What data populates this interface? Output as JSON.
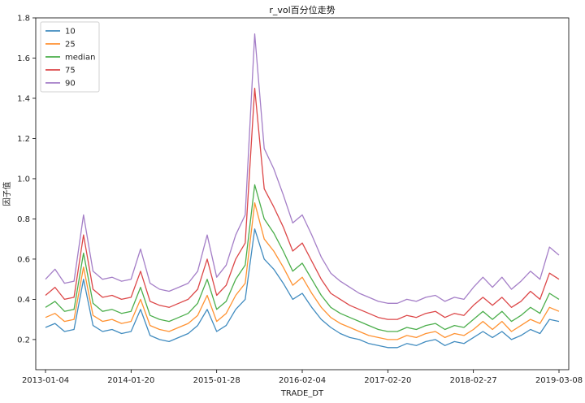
{
  "chart_data": {
    "type": "line",
    "title": "r_vol百分位走势",
    "xlabel": "TRADE_DT",
    "ylabel": "因子值",
    "ylim": [
      0.05,
      1.8
    ],
    "yticks": [
      0.2,
      0.4,
      0.6,
      0.8,
      1.0,
      1.2,
      1.4,
      1.6,
      1.8
    ],
    "ytick_labels": [
      "0.2",
      "0.4",
      "0.6",
      "0.8",
      "1.0",
      "1.2",
      "1.4",
      "1.6",
      "1.8"
    ],
    "xtick_labels": [
      "2013-01-04",
      "2014-01-20",
      "2015-01-28",
      "2016-02-04",
      "2017-02-20",
      "2018-02-27",
      "2019-03-08"
    ],
    "legend_position": "top-left",
    "grid": false,
    "x": [
      "2013-01-04",
      "2013-02-15",
      "2013-03-29",
      "2013-05-10",
      "2013-06-21",
      "2013-08-02",
      "2013-09-13",
      "2013-10-25",
      "2013-12-06",
      "2014-01-20",
      "2014-03-03",
      "2014-04-14",
      "2014-05-26",
      "2014-07-07",
      "2014-08-18",
      "2014-09-29",
      "2014-11-10",
      "2014-12-22",
      "2015-01-28",
      "2015-03-11",
      "2015-04-22",
      "2015-06-03",
      "2015-07-15",
      "2015-08-26",
      "2015-10-07",
      "2015-11-18",
      "2015-12-30",
      "2016-02-04",
      "2016-03-17",
      "2016-04-28",
      "2016-06-09",
      "2016-07-21",
      "2016-09-01",
      "2016-10-13",
      "2016-11-24",
      "2017-01-05",
      "2017-02-20",
      "2017-04-03",
      "2017-05-15",
      "2017-06-26",
      "2017-08-07",
      "2017-09-18",
      "2017-10-30",
      "2017-12-11",
      "2018-01-22",
      "2018-02-27",
      "2018-04-10",
      "2018-05-22",
      "2018-07-03",
      "2018-08-14",
      "2018-09-25",
      "2018-11-06",
      "2018-12-18",
      "2019-01-29",
      "2019-03-08"
    ],
    "series": [
      {
        "name": "10",
        "color": "#1f77b4",
        "values": [
          0.26,
          0.28,
          0.24,
          0.25,
          0.5,
          0.27,
          0.24,
          0.25,
          0.23,
          0.24,
          0.35,
          0.22,
          0.2,
          0.19,
          0.21,
          0.23,
          0.27,
          0.35,
          0.24,
          0.27,
          0.35,
          0.4,
          0.75,
          0.6,
          0.55,
          0.48,
          0.4,
          0.43,
          0.36,
          0.3,
          0.26,
          0.23,
          0.21,
          0.2,
          0.18,
          0.17,
          0.16,
          0.16,
          0.18,
          0.17,
          0.19,
          0.2,
          0.17,
          0.19,
          0.18,
          0.21,
          0.24,
          0.21,
          0.24,
          0.2,
          0.22,
          0.25,
          0.23,
          0.3,
          0.29
        ]
      },
      {
        "name": "25",
        "color": "#ff7f0e",
        "values": [
          0.31,
          0.33,
          0.29,
          0.3,
          0.56,
          0.32,
          0.29,
          0.3,
          0.28,
          0.29,
          0.4,
          0.27,
          0.25,
          0.24,
          0.26,
          0.28,
          0.32,
          0.42,
          0.29,
          0.33,
          0.42,
          0.48,
          0.88,
          0.7,
          0.64,
          0.56,
          0.47,
          0.51,
          0.43,
          0.36,
          0.31,
          0.28,
          0.26,
          0.24,
          0.22,
          0.21,
          0.2,
          0.2,
          0.22,
          0.21,
          0.23,
          0.24,
          0.21,
          0.23,
          0.22,
          0.25,
          0.29,
          0.25,
          0.29,
          0.24,
          0.27,
          0.3,
          0.28,
          0.36,
          0.34
        ]
      },
      {
        "name": "median",
        "color": "#2ca02c",
        "values": [
          0.36,
          0.39,
          0.34,
          0.35,
          0.63,
          0.38,
          0.34,
          0.35,
          0.33,
          0.34,
          0.46,
          0.32,
          0.3,
          0.29,
          0.31,
          0.33,
          0.38,
          0.5,
          0.35,
          0.39,
          0.5,
          0.57,
          0.97,
          0.8,
          0.73,
          0.64,
          0.54,
          0.58,
          0.5,
          0.42,
          0.36,
          0.33,
          0.31,
          0.29,
          0.27,
          0.25,
          0.24,
          0.24,
          0.26,
          0.25,
          0.27,
          0.28,
          0.25,
          0.27,
          0.26,
          0.3,
          0.34,
          0.3,
          0.34,
          0.29,
          0.32,
          0.36,
          0.33,
          0.43,
          0.4
        ]
      },
      {
        "name": "75",
        "color": "#d62728",
        "values": [
          0.42,
          0.46,
          0.4,
          0.41,
          0.72,
          0.45,
          0.41,
          0.42,
          0.4,
          0.41,
          0.54,
          0.39,
          0.37,
          0.36,
          0.38,
          0.4,
          0.45,
          0.6,
          0.42,
          0.47,
          0.6,
          0.68,
          1.45,
          0.95,
          0.86,
          0.76,
          0.64,
          0.68,
          0.59,
          0.5,
          0.43,
          0.4,
          0.37,
          0.35,
          0.33,
          0.31,
          0.3,
          0.3,
          0.32,
          0.31,
          0.33,
          0.34,
          0.31,
          0.33,
          0.32,
          0.37,
          0.41,
          0.37,
          0.41,
          0.36,
          0.39,
          0.44,
          0.4,
          0.53,
          0.5
        ]
      },
      {
        "name": "90",
        "color": "#9467bd",
        "values": [
          0.5,
          0.55,
          0.48,
          0.49,
          0.82,
          0.54,
          0.5,
          0.51,
          0.49,
          0.5,
          0.65,
          0.48,
          0.45,
          0.44,
          0.46,
          0.48,
          0.54,
          0.72,
          0.51,
          0.57,
          0.72,
          0.82,
          1.72,
          1.15,
          1.05,
          0.92,
          0.78,
          0.82,
          0.72,
          0.61,
          0.53,
          0.49,
          0.46,
          0.43,
          0.41,
          0.39,
          0.38,
          0.38,
          0.4,
          0.39,
          0.41,
          0.42,
          0.39,
          0.41,
          0.4,
          0.46,
          0.51,
          0.46,
          0.51,
          0.45,
          0.49,
          0.54,
          0.5,
          0.66,
          0.62
        ]
      }
    ]
  }
}
